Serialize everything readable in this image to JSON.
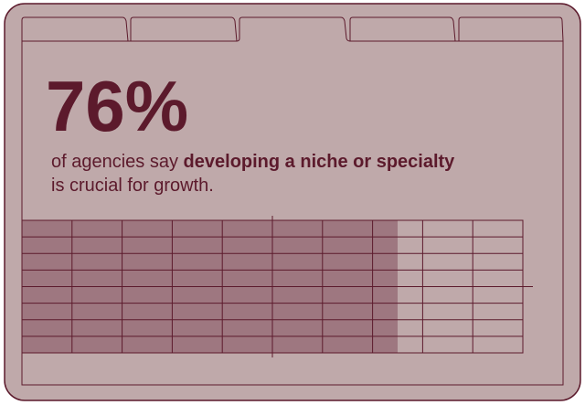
{
  "headline": "76%",
  "text_before": "of agencies say",
  "text_bold": "developing a niche or specialty",
  "text_after": "is crucial for growth."
}
